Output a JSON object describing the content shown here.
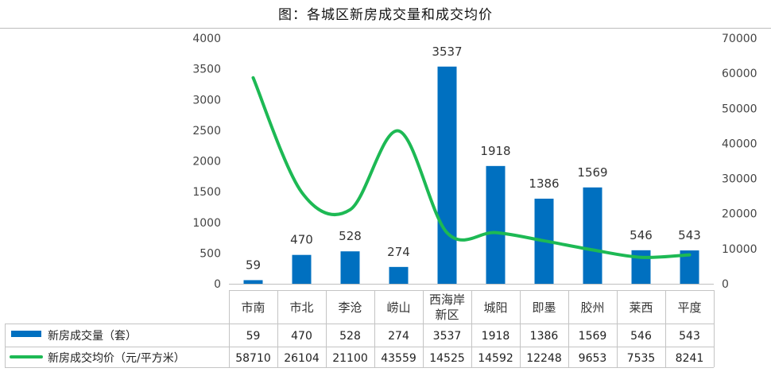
{
  "title": "图：各城区新房成交量和成交均价",
  "chart_data": {
    "type": "bar",
    "categories": [
      "市南",
      "市北",
      "李沧",
      "崂山",
      "西海岸\n新区",
      "城阳",
      "即墨",
      "胶州",
      "莱西",
      "平度"
    ],
    "series": [
      {
        "name": "新房成交量（套）",
        "type": "bar",
        "axis": "left",
        "color": "#0070C0",
        "values": [
          59,
          470,
          528,
          274,
          3537,
          1918,
          1386,
          1569,
          546,
          543
        ],
        "value_labels": [
          "59",
          "470",
          "528",
          "274",
          "3537",
          "1918",
          "1386",
          "1569",
          "546",
          "543"
        ]
      },
      {
        "name": "新房成交均价（元/平方米）",
        "type": "line",
        "axis": "right",
        "color": "#1DB954",
        "values": [
          58710,
          26104,
          21100,
          43559,
          14525,
          14592,
          12248,
          9653,
          7535,
          8241
        ],
        "value_labels": [
          "58710",
          "26104",
          "21100",
          "43559",
          "14525",
          "14592",
          "12248",
          "9653",
          "7535",
          "8241"
        ]
      }
    ],
    "y_left": {
      "min": 0,
      "max": 4000,
      "ticks": [
        "0",
        "500",
        "1000",
        "1500",
        "2000",
        "2500",
        "3000",
        "3500",
        "4000"
      ]
    },
    "y_right": {
      "min": 0,
      "max": 70000,
      "ticks": [
        "0",
        "10000",
        "20000",
        "30000",
        "40000",
        "50000",
        "60000",
        "70000"
      ]
    },
    "data_table": true,
    "legend": "data-table"
  }
}
